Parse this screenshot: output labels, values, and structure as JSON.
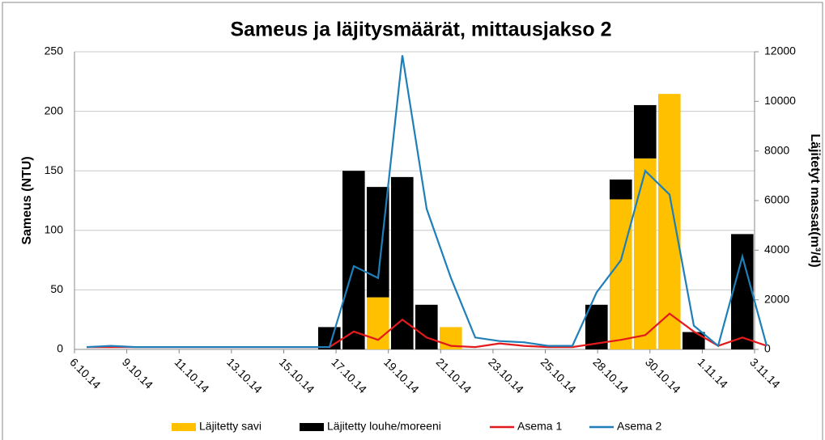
{
  "chart_data": {
    "type": "bar",
    "title": "Sameus ja läjitysmäärät, mittausjakso 2",
    "y_label": "Sameus (NTU)",
    "y2_label": "Läjitetyt massat(m³/d)",
    "x_labels": [
      "6.10.14",
      "9.10.14",
      "11.10.14",
      "13.10.14",
      "15.10.14",
      "17.10.14",
      "19.10.14",
      "21.10.14",
      "23.10.14",
      "25.10.14",
      "28.10.14",
      "30.10.14",
      "1.11.14",
      "3.11.14"
    ],
    "ylim": [
      0,
      250
    ],
    "yticks": [
      0,
      50,
      100,
      150,
      200,
      250
    ],
    "y2lim": [
      0,
      12000
    ],
    "y2ticks": [
      0,
      2000,
      4000,
      6000,
      8000,
      10000,
      12000
    ],
    "grid": true,
    "legend": "bottom",
    "x": [
      "16.10.14",
      "17.10.14",
      "18.10.14",
      "19.10.14",
      "20.10.14",
      "21.10.14",
      "27.10.14",
      "28.10.14",
      "29.10.14",
      "30.10.14",
      "31.10.14",
      "2.11.14"
    ],
    "series": [
      {
        "name": "Läjitetty savi",
        "color": "#ffc000",
        "axis": "y2",
        "type": "bar",
        "values": [
          null,
          null,
          2100,
          null,
          null,
          900,
          null,
          6050,
          7700,
          10300,
          null,
          null
        ]
      },
      {
        "name": "Läjitetty louhe/moreeni",
        "color": "#000000",
        "axis": "y2",
        "type": "bar",
        "values": [
          900,
          7200,
          4450,
          6950,
          1800,
          null,
          1800,
          800,
          2150,
          null,
          700,
          4650
        ]
      },
      {
        "name": "Asema 1",
        "color": "#e31a1c",
        "type": "line",
        "x": [
          "6.10.14",
          "7.10.14",
          "8.10.14",
          "9.10.14",
          "10.10.14",
          "11.10.14",
          "12.10.14",
          "13.10.14",
          "14.10.14",
          "15.10.14",
          "16.10.14",
          "17.10.14",
          "18.10.14",
          "19.10.14",
          "20.10.14",
          "21.10.14",
          "22.10.14",
          "23.10.14",
          "24.10.14",
          "25.10.14",
          "26.10.14",
          "27.10.14",
          "28.10.14",
          "29.10.14",
          "30.10.14",
          "31.10.14",
          "1.11.14",
          "2.11.14",
          "3.11.14"
        ],
        "values": [
          2,
          2,
          2,
          2,
          2,
          2,
          2,
          2,
          2,
          2,
          2,
          15,
          8,
          25,
          10,
          3,
          2,
          5,
          3,
          2,
          2,
          5,
          8,
          12,
          30,
          15,
          3,
          10,
          3
        ]
      },
      {
        "name": "Asema 2",
        "color": "#1f7fb8",
        "type": "line",
        "x": [
          "6.10.14",
          "7.10.14",
          "8.10.14",
          "9.10.14",
          "10.10.14",
          "11.10.14",
          "12.10.14",
          "13.10.14",
          "14.10.14",
          "15.10.14",
          "16.10.14",
          "17.10.14",
          "18.10.14",
          "19.10.14",
          "20.10.14",
          "21.10.14",
          "22.10.14",
          "23.10.14",
          "24.10.14",
          "25.10.14",
          "26.10.14",
          "27.10.14",
          "28.10.14",
          "29.10.14",
          "30.10.14",
          "31.10.14",
          "1.11.14",
          "2.11.14",
          "3.11.14"
        ],
        "values": [
          2,
          3,
          2,
          2,
          2,
          2,
          2,
          2,
          2,
          2,
          2,
          70,
          60,
          247,
          118,
          60,
          10,
          7,
          6,
          3,
          3,
          48,
          75,
          150,
          130,
          20,
          3,
          78,
          3
        ]
      }
    ]
  }
}
